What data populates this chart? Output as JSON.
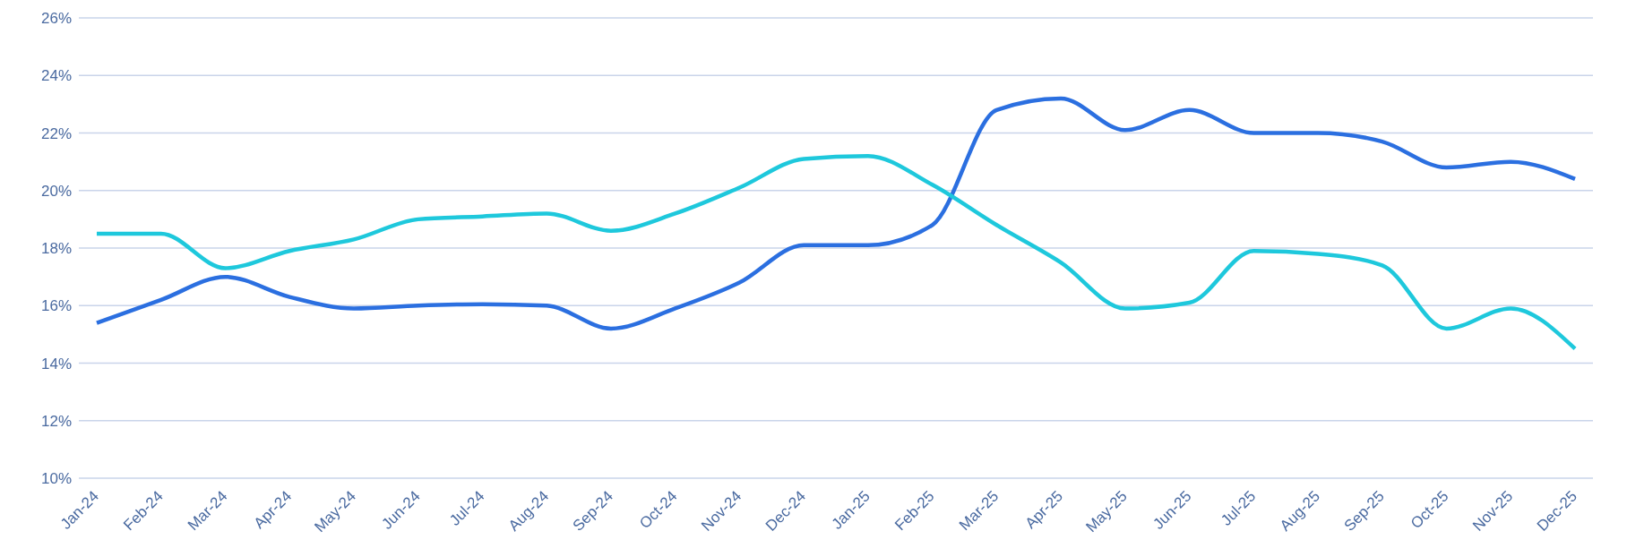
{
  "chart_data": {
    "type": "line",
    "categories": [
      "Jan-24",
      "Feb-24",
      "Mar-24",
      "Apr-24",
      "May-24",
      "Jun-24",
      "Jul-24",
      "Aug-24",
      "Sep-24",
      "Oct-24",
      "Nov-24",
      "Dec-24",
      "Jan-25",
      "Feb-25",
      "Mar-25",
      "Apr-25",
      "May-25",
      "Jun-25",
      "Jul-25",
      "Aug-25",
      "Sep-25",
      "Oct-25",
      "Nov-25",
      "Dec-25"
    ],
    "series": [
      {
        "color": "#2b6fe0",
        "values": [
          15.4,
          16.2,
          17.0,
          16.3,
          15.9,
          16.0,
          16.05,
          16.0,
          15.2,
          15.9,
          16.8,
          18.1,
          18.1,
          18.8,
          22.8,
          23.2,
          22.1,
          22.8,
          22.0,
          22.0,
          21.7,
          20.8,
          21.0,
          20.4
        ]
      },
      {
        "color": "#1ec8dc",
        "values": [
          18.5,
          18.5,
          17.3,
          17.9,
          18.3,
          19.0,
          19.1,
          19.2,
          18.6,
          19.2,
          20.1,
          21.1,
          21.2,
          20.2,
          18.8,
          17.5,
          15.9,
          16.1,
          17.9,
          17.8,
          17.4,
          15.2,
          15.9,
          14.5
        ]
      }
    ],
    "ylim": [
      10,
      26
    ],
    "yticks": [
      {
        "value": 10,
        "label": "10%"
      },
      {
        "value": 12,
        "label": "12%"
      },
      {
        "value": 14,
        "label": "14%"
      },
      {
        "value": 16,
        "label": "16%"
      },
      {
        "value": 18,
        "label": "18%"
      },
      {
        "value": 20,
        "label": "20%"
      },
      {
        "value": 22,
        "label": "22%"
      },
      {
        "value": 24,
        "label": "24%"
      },
      {
        "value": 26,
        "label": "26%"
      }
    ],
    "grid": "y",
    "marker": "none",
    "line_style": "solid",
    "legend": false
  }
}
